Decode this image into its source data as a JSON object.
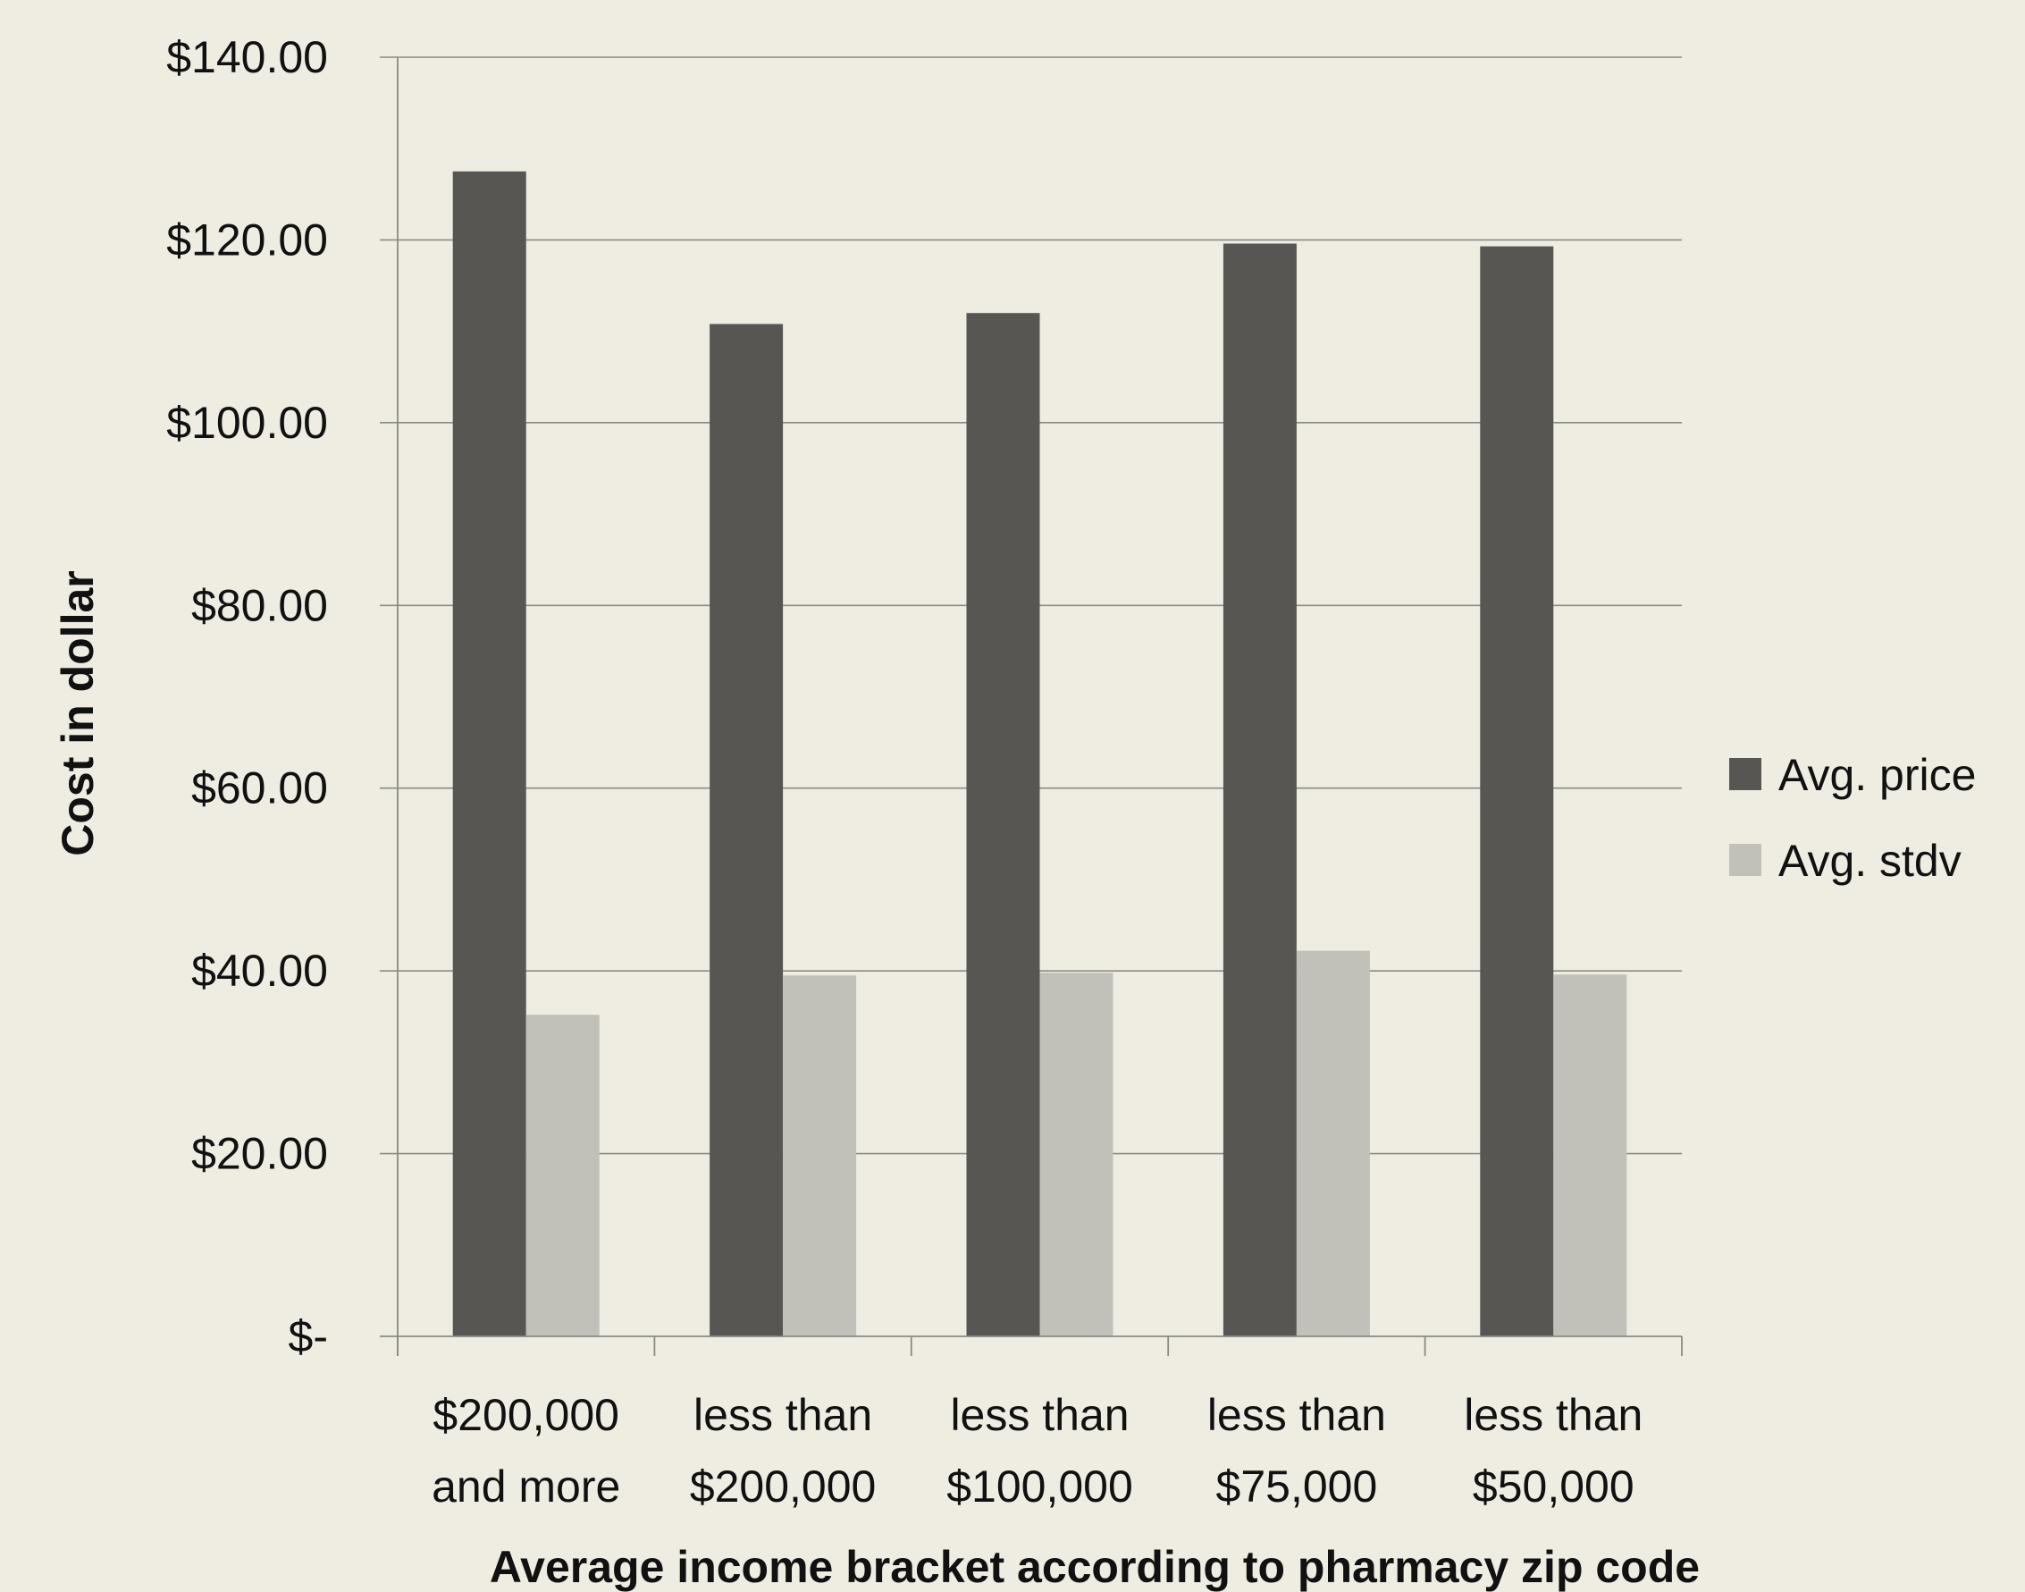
{
  "chart_data": {
    "type": "bar",
    "categories": [
      [
        "$200,000",
        "and more"
      ],
      [
        "less than",
        "$200,000"
      ],
      [
        "less than",
        "$100,000"
      ],
      [
        "less than",
        "$75,000"
      ],
      [
        "less than",
        "$50,000"
      ]
    ],
    "series": [
      {
        "name": "Avg. price",
        "values": [
          127.5,
          110.8,
          112.0,
          119.6,
          119.3
        ],
        "color": "#575652"
      },
      {
        "name": "Avg. stdv",
        "values": [
          35.2,
          39.5,
          39.8,
          42.2,
          39.6
        ],
        "color": "#c1c1ba"
      }
    ],
    "xlabel": "Average income bracket according to pharmacy zip code",
    "ylabel": "Cost in dollar",
    "ylim": [
      0,
      140
    ],
    "y_ticks": [
      {
        "value": 0,
        "label": "$-"
      },
      {
        "value": 20,
        "label": "$20.00"
      },
      {
        "value": 40,
        "label": "$40.00"
      },
      {
        "value": 60,
        "label": "$60.00"
      },
      {
        "value": 80,
        "label": "$80.00"
      },
      {
        "value": 100,
        "label": "$100.00"
      },
      {
        "value": 120,
        "label": "$120.00"
      },
      {
        "value": 140,
        "label": "$140.00"
      }
    ],
    "grid": true,
    "legend_position": "right",
    "colors": {
      "background": "#efede2",
      "grid": "#8a8a86",
      "axis": "#8a8a86"
    }
  }
}
